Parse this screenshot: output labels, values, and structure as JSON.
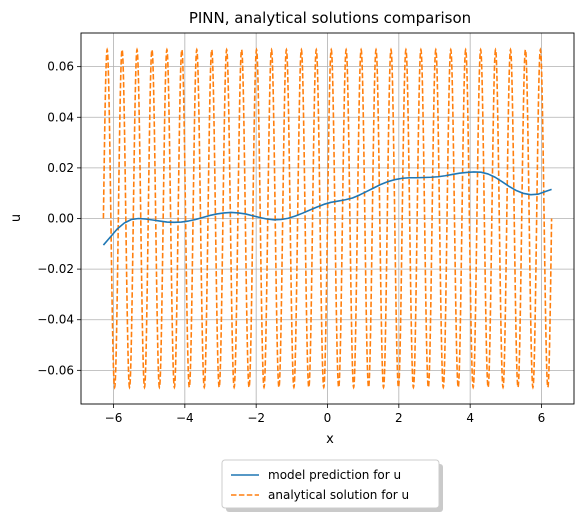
{
  "chart_data": {
    "type": "line",
    "title": "PINN, analytical solutions comparison",
    "xlabel": "x",
    "ylabel": "u",
    "xlim": [
      -6.911504,
      6.911504
    ],
    "ylim": [
      -0.0733,
      0.0733
    ],
    "xticks": [
      -6,
      -4,
      -2,
      0,
      2,
      4,
      6
    ],
    "xtick_labels": [
      "−6",
      "−4",
      "−2",
      "0",
      "2",
      "4",
      "6"
    ],
    "yticks": [
      -0.06,
      -0.04,
      -0.02,
      0.0,
      0.02,
      0.04,
      0.06
    ],
    "ytick_labels": [
      "−0.06",
      "−0.04",
      "−0.02",
      "0.00",
      "0.02",
      "0.04",
      "0.06"
    ],
    "grid": true,
    "legend_position": "below-center",
    "series": [
      {
        "name": "model prediction for u",
        "style": "solid",
        "color": "#1f77b4",
        "x": [
          -6.2832,
          -6.1,
          -5.9,
          -5.7,
          -5.5,
          -5.3,
          -5.1,
          -4.9,
          -4.7,
          -4.5,
          -4.3,
          -4.1,
          -3.9,
          -3.7,
          -3.5,
          -3.3,
          -3.1,
          -2.9,
          -2.7,
          -2.5,
          -2.3,
          -2.1,
          -1.9,
          -1.7,
          -1.5,
          -1.3,
          -1.1,
          -0.9,
          -0.7,
          -0.5,
          -0.3,
          -0.1,
          0.1,
          0.3,
          0.5,
          0.7,
          0.9,
          1.1,
          1.3,
          1.5,
          1.7,
          1.9,
          2.1,
          2.3,
          2.5,
          2.7,
          2.9,
          3.1,
          3.3,
          3.5,
          3.7,
          3.9,
          4.1,
          4.3,
          4.5,
          4.7,
          4.9,
          5.1,
          5.3,
          5.5,
          5.7,
          5.9,
          6.1,
          6.2832
        ],
        "y": [
          -0.0105,
          -0.0075,
          -0.0042,
          -0.0018,
          -0.0004,
          0.0,
          -0.0002,
          -0.0006,
          -0.001,
          -0.0014,
          -0.0015,
          -0.0014,
          -0.001,
          -0.0004,
          0.0004,
          0.0012,
          0.0018,
          0.0022,
          0.0024,
          0.0022,
          0.0018,
          0.0011,
          0.0004,
          -0.0002,
          -0.0005,
          -0.0004,
          0.0001,
          0.001,
          0.0021,
          0.0033,
          0.0045,
          0.0056,
          0.0064,
          0.0069,
          0.0074,
          0.0081,
          0.0093,
          0.0107,
          0.0121,
          0.0135,
          0.0146,
          0.0154,
          0.0159,
          0.0161,
          0.0161,
          0.0162,
          0.0163,
          0.0165,
          0.0169,
          0.0174,
          0.0179,
          0.0182,
          0.0184,
          0.0183,
          0.0176,
          0.0163,
          0.0145,
          0.0126,
          0.011,
          0.0099,
          0.0094,
          0.0096,
          0.0106,
          0.0115
        ]
      },
      {
        "name": "analytical solution for u",
        "style": "dashed",
        "color": "#ff7f0e",
        "function": "u = 0.0667 * sin(15 * x)",
        "x_range": [
          -6.2832,
          6.2832
        ],
        "samples": 2400
      }
    ]
  }
}
